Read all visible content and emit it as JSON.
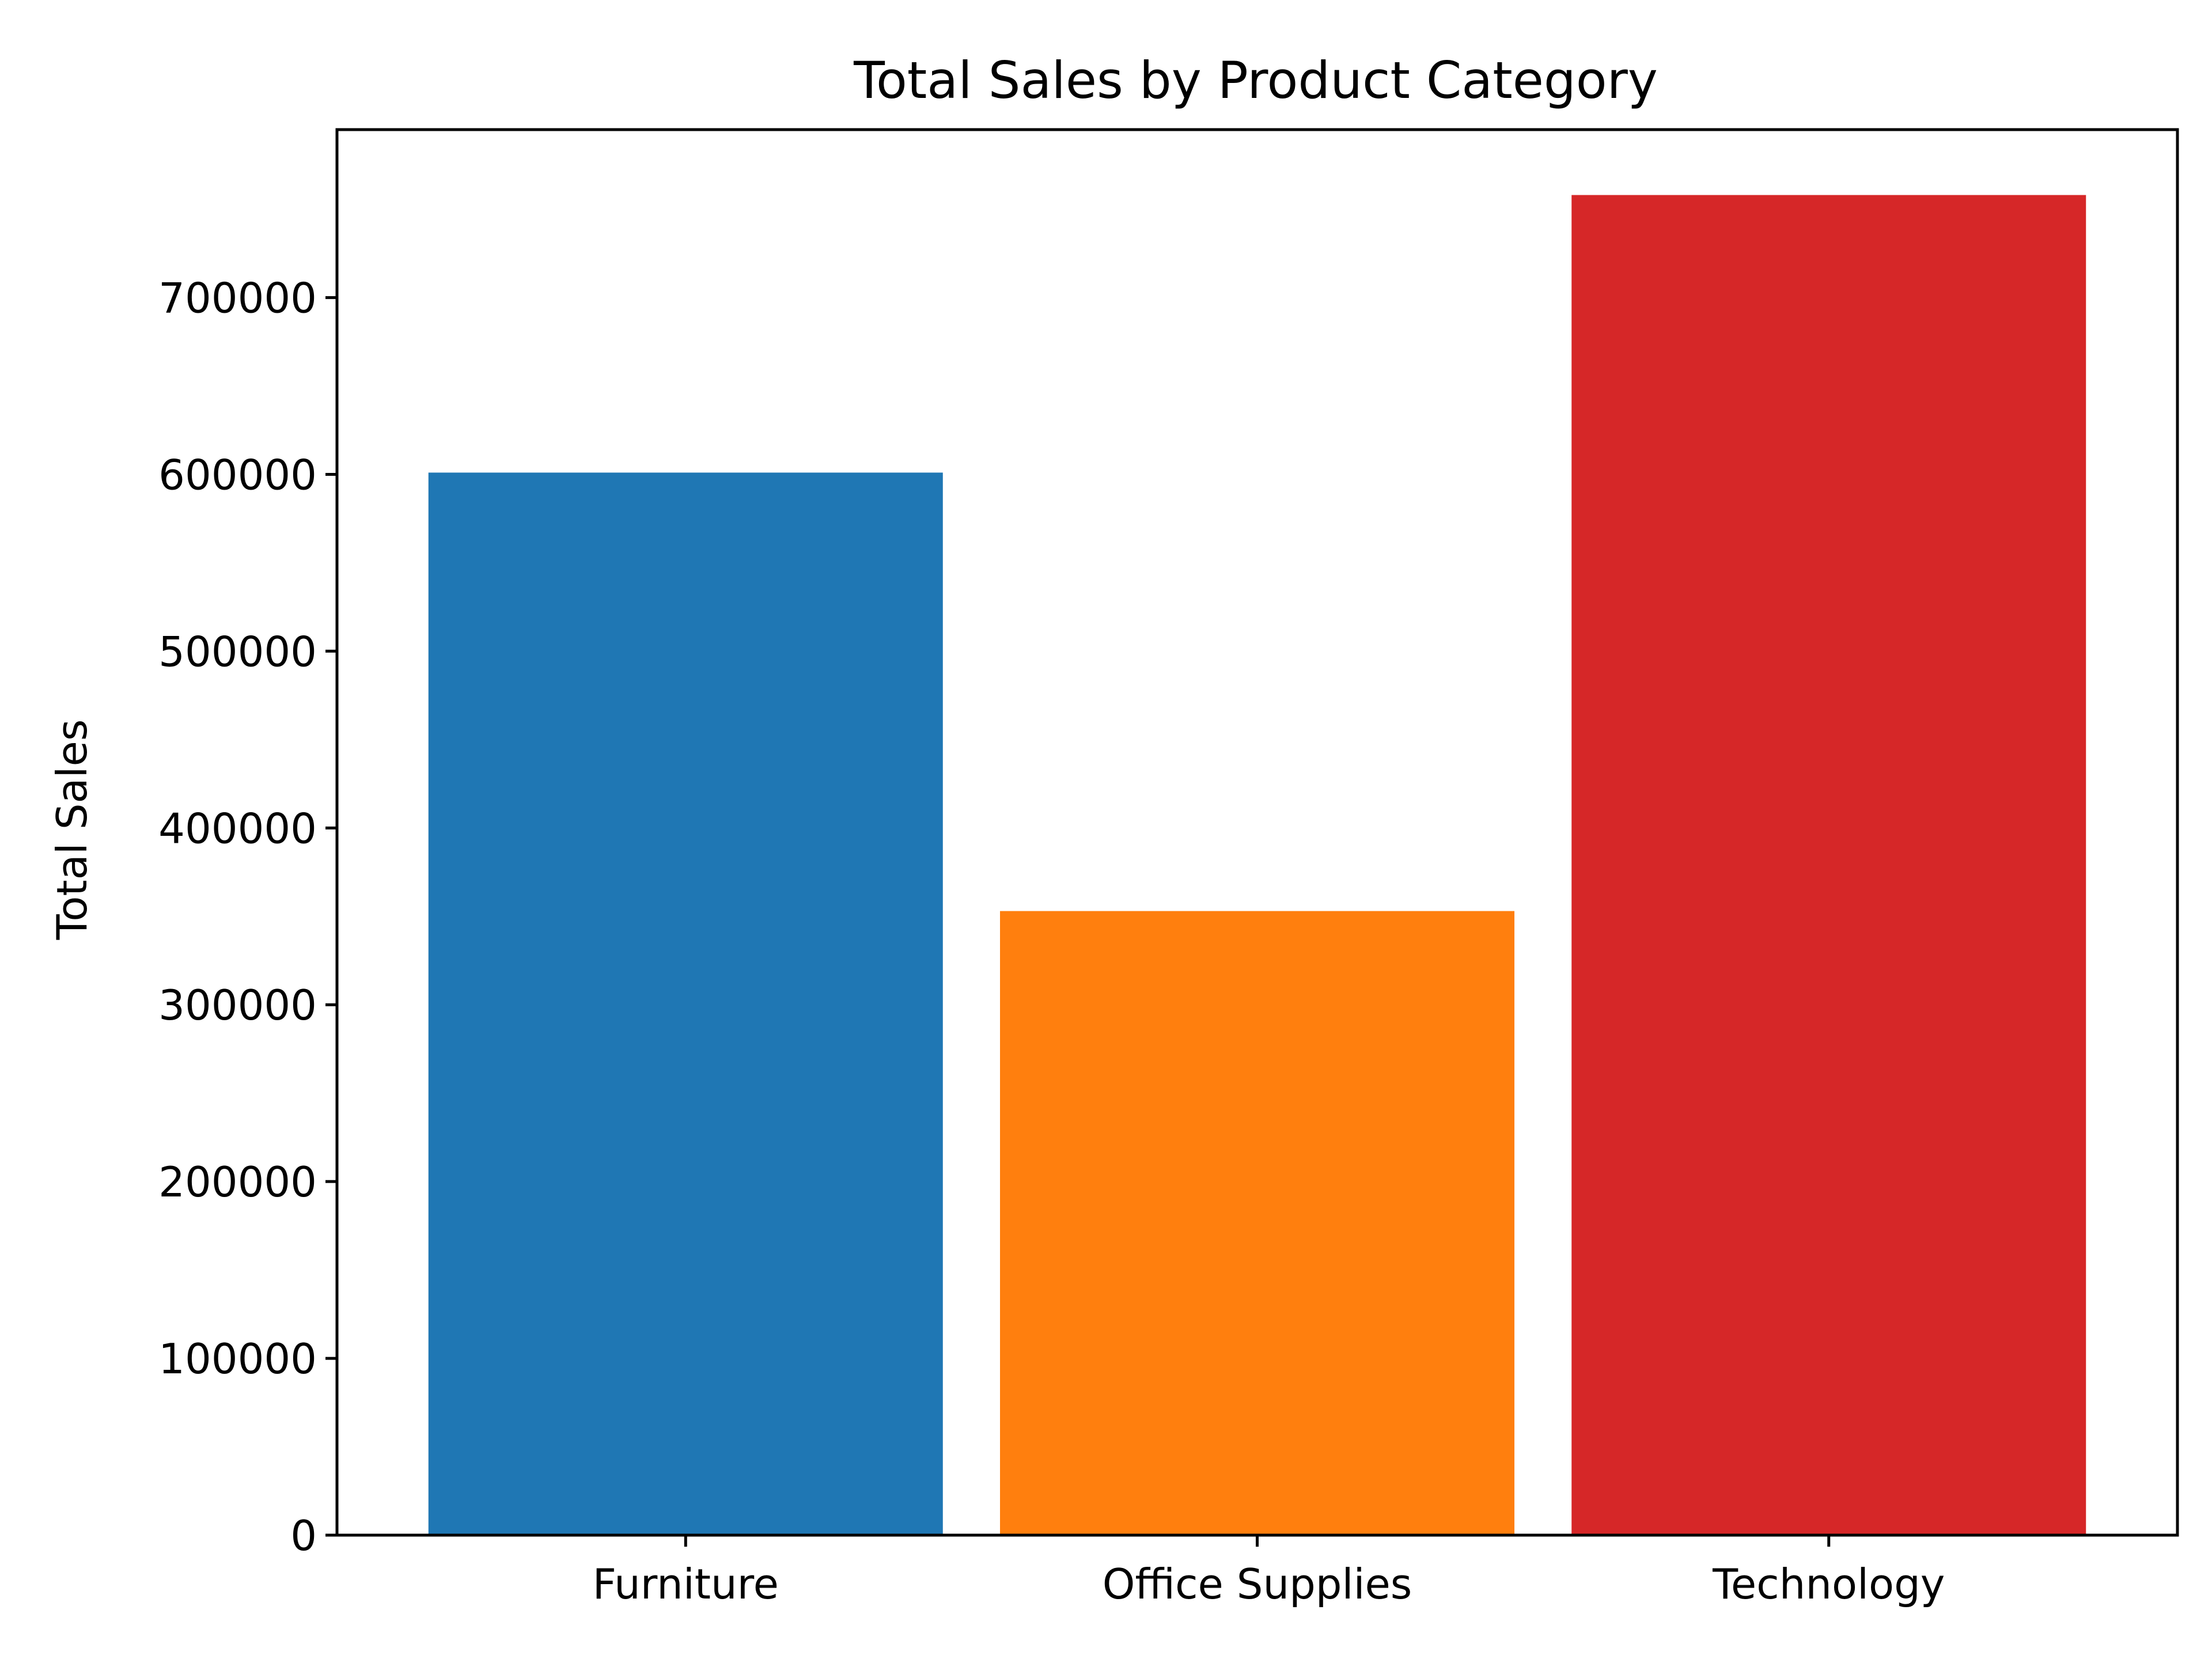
{
  "chart_data": {
    "type": "bar",
    "title": "Total Sales by Product Category",
    "xlabel": "",
    "ylabel": "Total Sales",
    "categories": [
      "Furniture",
      "Office Supplies",
      "Technology"
    ],
    "values": [
      601000,
      353000,
      758000
    ],
    "colors": [
      "#1f77b4",
      "#ff7f0e",
      "#d62728"
    ],
    "ylim": [
      0,
      795000
    ],
    "yticks": [
      0,
      100000,
      200000,
      300000,
      400000,
      500000,
      600000,
      700000
    ],
    "ytick_labels": [
      "0",
      "100000",
      "200000",
      "300000",
      "400000",
      "500000",
      "600000",
      "700000"
    ],
    "grid": false,
    "legend": null
  }
}
